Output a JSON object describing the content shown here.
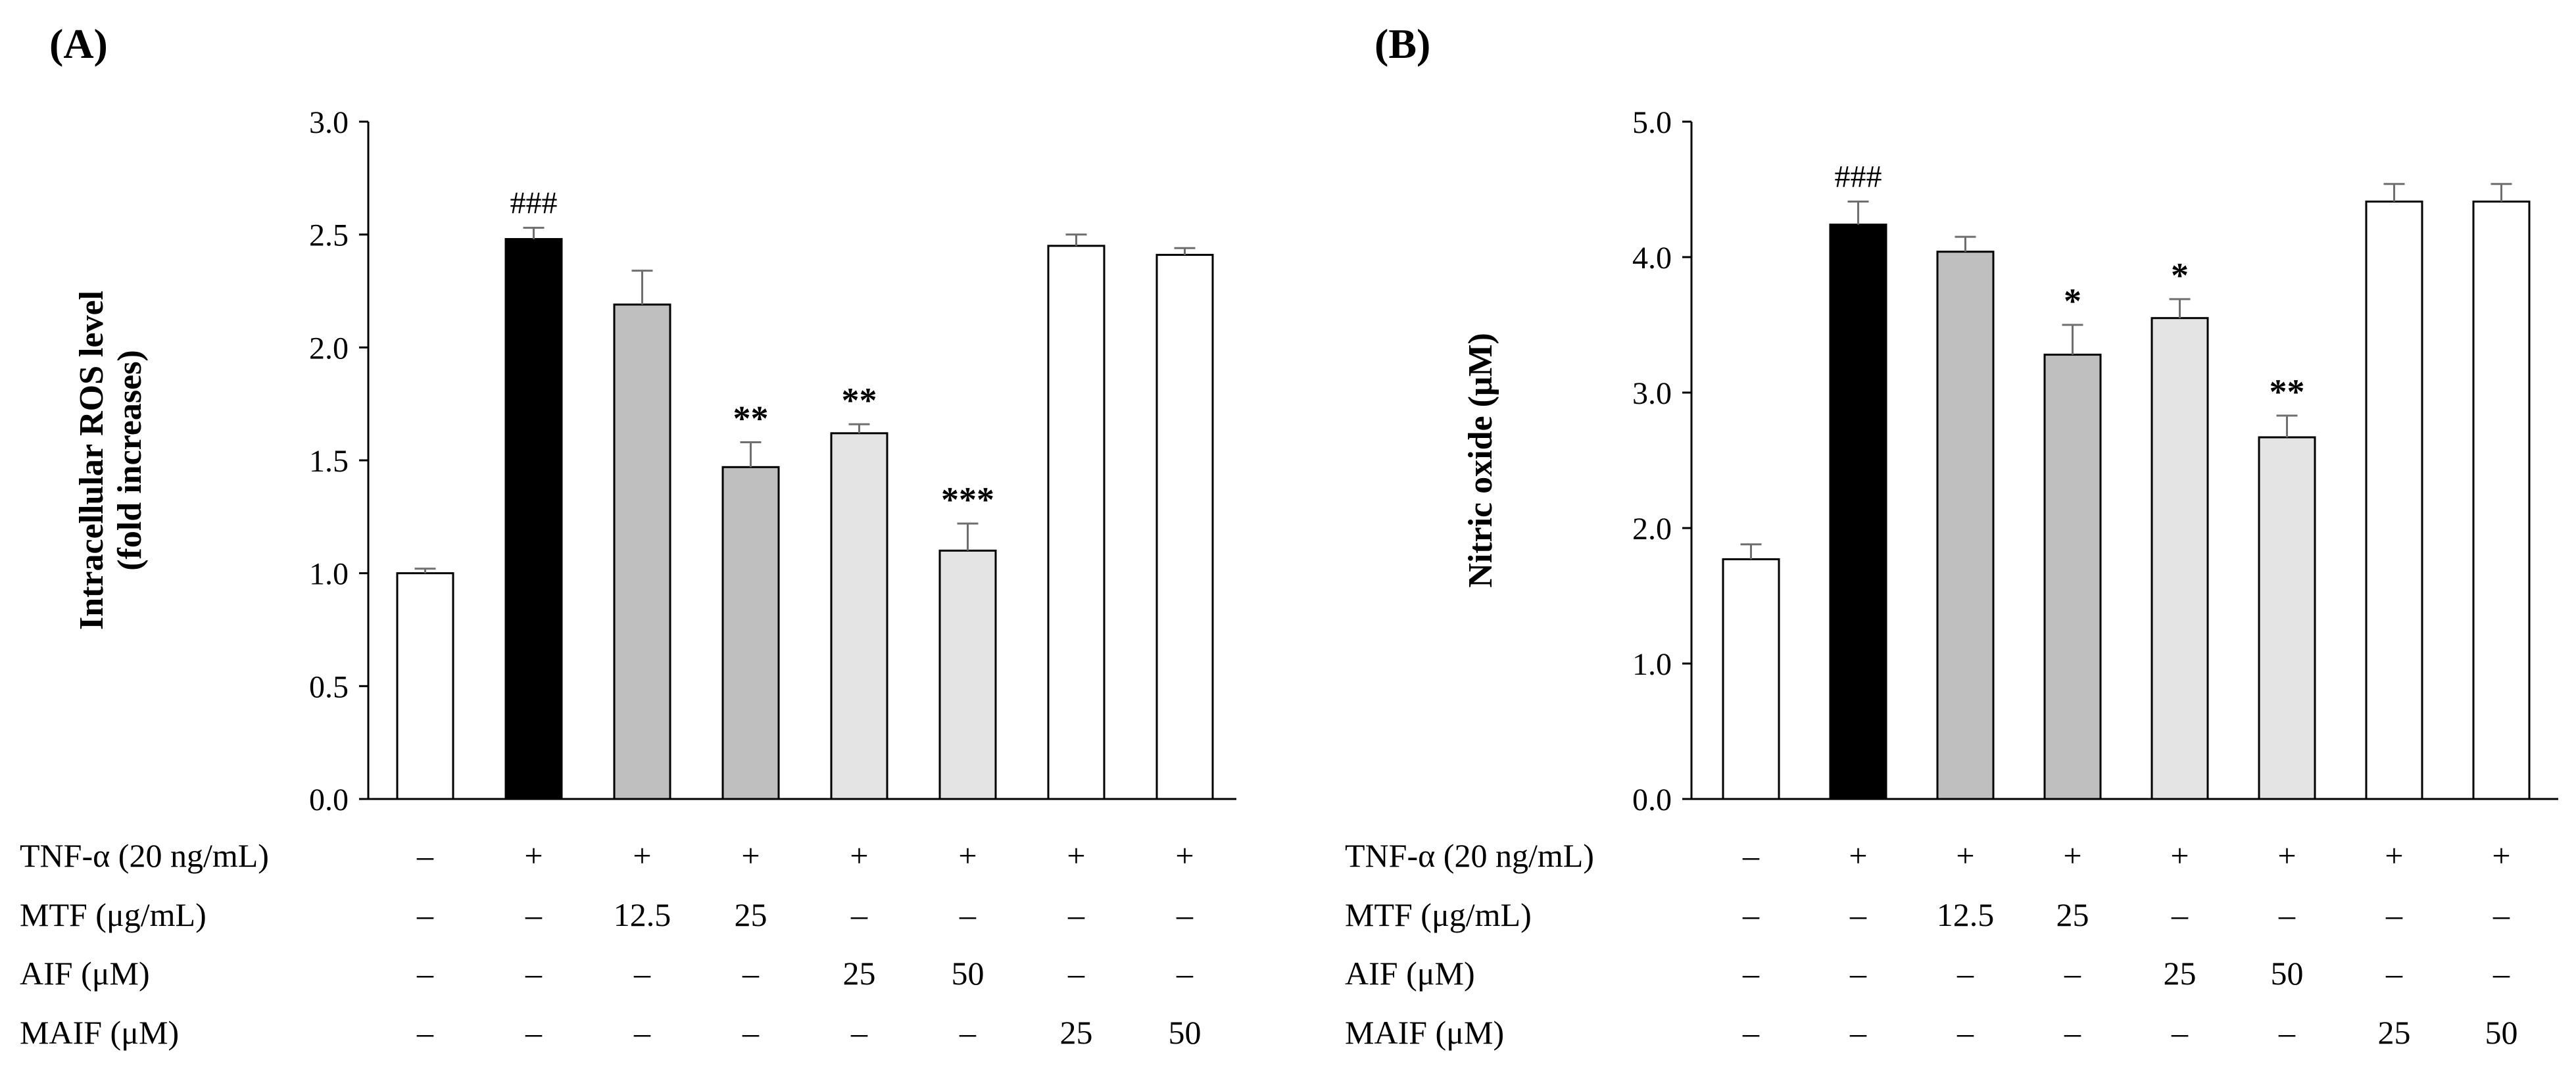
{
  "chart_data": [
    {
      "type": "bar",
      "panel_label": "(A)",
      "title": "",
      "ylabel_lines": [
        "Intracellular ROS level",
        "(fold increases)"
      ],
      "xlabel": "",
      "ylim": [
        0,
        3.0
      ],
      "ytick_labels": [
        "0.0",
        "0.5",
        "1.0",
        "1.5",
        "2.0",
        "2.5",
        "3.0"
      ],
      "ytick_values": [
        0,
        0.5,
        1.0,
        1.5,
        2.0,
        2.5,
        3.0
      ],
      "values": [
        1.0,
        2.48,
        2.19,
        1.47,
        1.62,
        1.1,
        2.45,
        2.41
      ],
      "errors": [
        0.02,
        0.05,
        0.15,
        0.11,
        0.04,
        0.12,
        0.05,
        0.03
      ],
      "fill_colors": [
        "#ffffff",
        "#000000",
        "#bfbfbf",
        "#bfbfbf",
        "#e4e4e4",
        "#e4e4e4",
        "#ffffff",
        "#ffffff"
      ],
      "annotations": [
        "",
        "###",
        "",
        "**",
        "**",
        "***",
        "",
        ""
      ]
    },
    {
      "type": "bar",
      "panel_label": "(B)",
      "title": "",
      "ylabel_lines": [
        "Nitric oxide (μM)"
      ],
      "xlabel": "",
      "ylim": [
        0,
        5.0
      ],
      "ytick_labels": [
        "0.0",
        "1.0",
        "2.0",
        "3.0",
        "4.0",
        "5.0"
      ],
      "ytick_values": [
        0,
        1.0,
        2.0,
        3.0,
        4.0,
        5.0
      ],
      "values": [
        1.77,
        4.24,
        4.04,
        3.28,
        3.55,
        2.67,
        4.41,
        4.41
      ],
      "errors": [
        0.11,
        0.17,
        0.11,
        0.22,
        0.14,
        0.16,
        0.13,
        0.13
      ],
      "fill_colors": [
        "#ffffff",
        "#000000",
        "#bfbfbf",
        "#bfbfbf",
        "#e4e4e4",
        "#e4e4e4",
        "#ffffff",
        "#ffffff"
      ],
      "annotations": [
        "",
        "###",
        "",
        "*",
        "*",
        "**",
        "",
        ""
      ]
    }
  ],
  "treatments": [
    {
      "label": "TNF-α (20 ng/mL)",
      "values": [
        "–",
        "+",
        "+",
        "+",
        "+",
        "+",
        "+",
        "+"
      ]
    },
    {
      "label": "MTF (μg/mL)",
      "values": [
        "–",
        "–",
        "12.5",
        "25",
        "–",
        "–",
        "–",
        "–"
      ]
    },
    {
      "label": "AIF (μM)",
      "values": [
        "–",
        "–",
        "–",
        "–",
        "25",
        "50",
        "–",
        "–"
      ]
    },
    {
      "label": "MAIF (μM)",
      "values": [
        "–",
        "–",
        "–",
        "–",
        "–",
        "–",
        "25",
        "50"
      ]
    }
  ]
}
